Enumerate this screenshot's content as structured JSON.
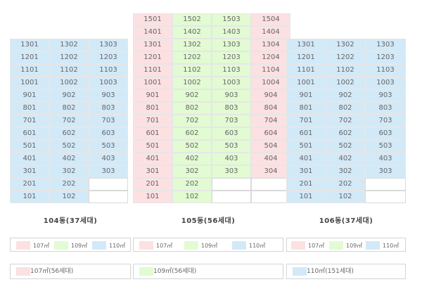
{
  "colors": {
    "t107": "#fce0e2",
    "t109": "#e2fbd3",
    "t110": "#d2e9f8"
  },
  "buildings": [
    {
      "name": "104동(37세대)",
      "x": 14,
      "y": 55,
      "rows": [
        [
          [
            "1301",
            "t110"
          ],
          [
            "1302",
            "t110"
          ],
          [
            "1303",
            "t110"
          ]
        ],
        [
          [
            "1201",
            "t110"
          ],
          [
            "1202",
            "t110"
          ],
          [
            "1203",
            "t110"
          ]
        ],
        [
          [
            "1101",
            "t110"
          ],
          [
            "1102",
            "t110"
          ],
          [
            "1103",
            "t110"
          ]
        ],
        [
          [
            "1001",
            "t110"
          ],
          [
            "1002",
            "t110"
          ],
          [
            "1003",
            "t110"
          ]
        ],
        [
          [
            "901",
            "t110"
          ],
          [
            "902",
            "t110"
          ],
          [
            "903",
            "t110"
          ]
        ],
        [
          [
            "801",
            "t110"
          ],
          [
            "802",
            "t110"
          ],
          [
            "803",
            "t110"
          ]
        ],
        [
          [
            "701",
            "t110"
          ],
          [
            "702",
            "t110"
          ],
          [
            "703",
            "t110"
          ]
        ],
        [
          [
            "601",
            "t110"
          ],
          [
            "602",
            "t110"
          ],
          [
            "603",
            "t110"
          ]
        ],
        [
          [
            "501",
            "t110"
          ],
          [
            "502",
            "t110"
          ],
          [
            "503",
            "t110"
          ]
        ],
        [
          [
            "401",
            "t110"
          ],
          [
            "402",
            "t110"
          ],
          [
            "403",
            "t110"
          ]
        ],
        [
          [
            "301",
            "t110"
          ],
          [
            "302",
            "t110"
          ],
          [
            "303",
            "t110"
          ]
        ],
        [
          [
            "201",
            "t110"
          ],
          [
            "202",
            "t110"
          ],
          [
            "",
            "empty"
          ]
        ],
        [
          [
            "101",
            "t110"
          ],
          [
            "102",
            "t110"
          ],
          [
            "",
            "empty"
          ]
        ]
      ]
    },
    {
      "name": "105동(56세대)",
      "x": 189,
      "y": 19,
      "rows": [
        [
          [
            "1501",
            "t107"
          ],
          [
            "1502",
            "t109"
          ],
          [
            "1503",
            "t109"
          ],
          [
            "1504",
            "t107"
          ]
        ],
        [
          [
            "1401",
            "t107"
          ],
          [
            "1402",
            "t109"
          ],
          [
            "1403",
            "t109"
          ],
          [
            "1404",
            "t107"
          ]
        ],
        [
          [
            "1301",
            "t107"
          ],
          [
            "1302",
            "t109"
          ],
          [
            "1303",
            "t109"
          ],
          [
            "1304",
            "t107"
          ]
        ],
        [
          [
            "1201",
            "t107"
          ],
          [
            "1202",
            "t109"
          ],
          [
            "1203",
            "t109"
          ],
          [
            "1204",
            "t107"
          ]
        ],
        [
          [
            "1101",
            "t107"
          ],
          [
            "1102",
            "t109"
          ],
          [
            "1103",
            "t109"
          ],
          [
            "1104",
            "t107"
          ]
        ],
        [
          [
            "1001",
            "t107"
          ],
          [
            "1002",
            "t109"
          ],
          [
            "1003",
            "t109"
          ],
          [
            "1004",
            "t107"
          ]
        ],
        [
          [
            "901",
            "t107"
          ],
          [
            "902",
            "t109"
          ],
          [
            "903",
            "t109"
          ],
          [
            "904",
            "t107"
          ]
        ],
        [
          [
            "801",
            "t107"
          ],
          [
            "802",
            "t109"
          ],
          [
            "803",
            "t109"
          ],
          [
            "804",
            "t107"
          ]
        ],
        [
          [
            "701",
            "t107"
          ],
          [
            "702",
            "t109"
          ],
          [
            "703",
            "t109"
          ],
          [
            "704",
            "t107"
          ]
        ],
        [
          [
            "601",
            "t107"
          ],
          [
            "602",
            "t109"
          ],
          [
            "603",
            "t109"
          ],
          [
            "604",
            "t107"
          ]
        ],
        [
          [
            "501",
            "t107"
          ],
          [
            "502",
            "t109"
          ],
          [
            "503",
            "t109"
          ],
          [
            "504",
            "t107"
          ]
        ],
        [
          [
            "401",
            "t107"
          ],
          [
            "402",
            "t109"
          ],
          [
            "403",
            "t109"
          ],
          [
            "404",
            "t107"
          ]
        ],
        [
          [
            "301",
            "t107"
          ],
          [
            "302",
            "t109"
          ],
          [
            "303",
            "t109"
          ],
          [
            "304",
            "t107"
          ]
        ],
        [
          [
            "201",
            "t107"
          ],
          [
            "202",
            "t109"
          ],
          [
            "",
            "empty"
          ],
          [
            "",
            "empty"
          ]
        ],
        [
          [
            "101",
            "t107"
          ],
          [
            "102",
            "t109"
          ],
          [
            "",
            "empty"
          ],
          [
            "",
            "empty"
          ]
        ]
      ]
    },
    {
      "name": "106동(37세대)",
      "x": 407,
      "y": 55,
      "rows": [
        [
          [
            "1301",
            "t110"
          ],
          [
            "1302",
            "t110"
          ],
          [
            "1303",
            "t110"
          ]
        ],
        [
          [
            "1201",
            "t110"
          ],
          [
            "1202",
            "t110"
          ],
          [
            "1203",
            "t110"
          ]
        ],
        [
          [
            "1101",
            "t110"
          ],
          [
            "1102",
            "t110"
          ],
          [
            "1103",
            "t110"
          ]
        ],
        [
          [
            "1001",
            "t110"
          ],
          [
            "1002",
            "t110"
          ],
          [
            "1003",
            "t110"
          ]
        ],
        [
          [
            "901",
            "t110"
          ],
          [
            "902",
            "t110"
          ],
          [
            "903",
            "t110"
          ]
        ],
        [
          [
            "801",
            "t110"
          ],
          [
            "802",
            "t110"
          ],
          [
            "803",
            "t110"
          ]
        ],
        [
          [
            "701",
            "t110"
          ],
          [
            "702",
            "t110"
          ],
          [
            "703",
            "t110"
          ]
        ],
        [
          [
            "601",
            "t110"
          ],
          [
            "602",
            "t110"
          ],
          [
            "603",
            "t110"
          ]
        ],
        [
          [
            "501",
            "t110"
          ],
          [
            "502",
            "t110"
          ],
          [
            "503",
            "t110"
          ]
        ],
        [
          [
            "401",
            "t110"
          ],
          [
            "402",
            "t110"
          ],
          [
            "403",
            "t110"
          ]
        ],
        [
          [
            "301",
            "t110"
          ],
          [
            "302",
            "t110"
          ],
          [
            "303",
            "t110"
          ]
        ],
        [
          [
            "201",
            "t110"
          ],
          [
            "202",
            "t110"
          ],
          [
            "",
            "empty"
          ]
        ],
        [
          [
            "101",
            "t110"
          ],
          [
            "102",
            "t110"
          ],
          [
            "",
            "empty"
          ]
        ]
      ]
    }
  ],
  "legend": [
    {
      "label": "107㎡",
      "color": "t107"
    },
    {
      "label": "109㎡",
      "color": "t109"
    },
    {
      "label": "110㎡",
      "color": "t110"
    }
  ],
  "summary": [
    {
      "label": "107㎡(56세대)",
      "color": "t107"
    },
    {
      "label": "109㎡(56세대)",
      "color": "t109"
    },
    {
      "label": "110㎡(151세대)",
      "color": "t110"
    }
  ]
}
